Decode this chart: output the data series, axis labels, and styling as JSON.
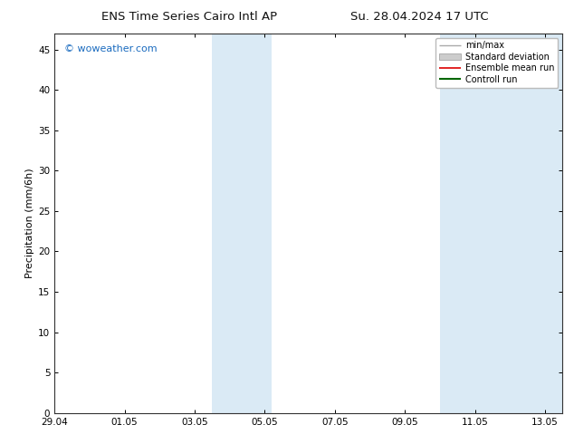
{
  "title_left": "ENS Time Series Cairo Intl AP",
  "title_right": "Su. 28.04.2024 17 UTC",
  "ylabel": "Precipitation (mm/6h)",
  "watermark": "© woweather.com",
  "watermark_color": "#1a6bbf",
  "x_ticks": [
    "29.04",
    "01.05",
    "03.05",
    "05.05",
    "07.05",
    "09.05",
    "11.05",
    "13.05"
  ],
  "x_tick_values": [
    0,
    2,
    4,
    6,
    8,
    10,
    12,
    14
  ],
  "xlim": [
    0,
    14.5
  ],
  "ylim": [
    0,
    47
  ],
  "yticks": [
    0,
    5,
    10,
    15,
    20,
    25,
    30,
    35,
    40,
    45
  ],
  "shaded_regions": [
    {
      "x_start": 4.5,
      "x_end": 6.2,
      "color": "#daeaf5"
    },
    {
      "x_start": 11.0,
      "x_end": 14.5,
      "color": "#daeaf5"
    }
  ],
  "legend_items": [
    {
      "label": "min/max",
      "color": "#aaaaaa",
      "lw": 1.0,
      "ls": "-",
      "type": "line"
    },
    {
      "label": "Standard deviation",
      "color": "#cccccc",
      "lw": 8,
      "ls": "-",
      "type": "patch"
    },
    {
      "label": "Ensemble mean run",
      "color": "#dd0000",
      "lw": 1.2,
      "ls": "-",
      "type": "line"
    },
    {
      "label": "Controll run",
      "color": "#006600",
      "lw": 1.5,
      "ls": "-",
      "type": "line"
    }
  ],
  "bg_color": "#ffffff",
  "plot_bg_color": "#ffffff",
  "title_fontsize": 9.5,
  "tick_fontsize": 7.5,
  "ylabel_fontsize": 8,
  "watermark_fontsize": 8
}
